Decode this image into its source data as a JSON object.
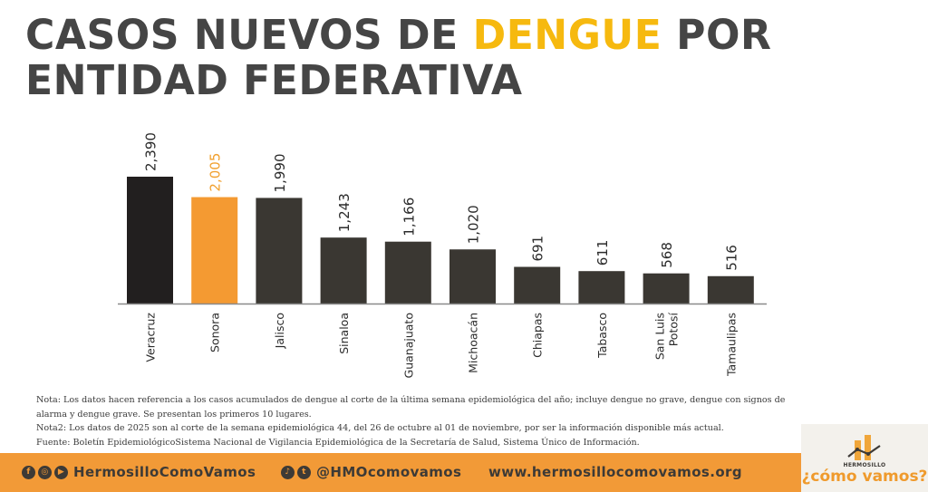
{
  "header": {
    "title_part1": "CASOS NUEVOS DE ",
    "title_highlight": "DENGUE",
    "title_part2": " POR",
    "title_line2": "ENTIDAD FEDERATIVA"
  },
  "colors": {
    "title_text": "#454545",
    "title_highlight": "#f6b90f",
    "bar_default": "#3a3732",
    "bar_first": "#221f1f",
    "bar_highlight": "#f49a32",
    "label_highlight": "#f1a02e",
    "axis": "#8a8a8a",
    "footer_bg": "#f29a37"
  },
  "chart_data": {
    "type": "bar",
    "title": "Casos nuevos de dengue por entidad federativa",
    "xlabel": "",
    "ylabel": "",
    "categories": [
      "Veracruz",
      "Sonora",
      "Jalisco",
      "Sinaloa",
      "Guanajuato",
      "Michoacán",
      "Chiapas",
      "Tabasco",
      "San Luis Potosí",
      "Tamaulipas"
    ],
    "category_lines": [
      [
        "Veracruz"
      ],
      [
        "Sonora"
      ],
      [
        "Jalisco"
      ],
      [
        "Sinaloa"
      ],
      [
        "Guanajuato"
      ],
      [
        "Michoacán"
      ],
      [
        "Chiapas"
      ],
      [
        "Tabasco"
      ],
      [
        "San Luis",
        "Potosí"
      ],
      [
        "Tamaulipas"
      ]
    ],
    "values": [
      2390,
      2005,
      1990,
      1243,
      1166,
      1020,
      691,
      611,
      568,
      516
    ],
    "value_labels": [
      "2,390",
      "2,005",
      "1,990",
      "1,243",
      "1,166",
      "1,020",
      "691",
      "611",
      "568",
      "516"
    ],
    "highlight_index": 1,
    "ylim": [
      0,
      2390
    ],
    "grid": false,
    "legend": "none"
  },
  "notes": {
    "nota1": "Nota: Los datos hacen referencia a los casos acumulados de dengue al corte de la última semana epidemiológica del año; incluye dengue no grave, dengue con signos de alarma y dengue grave. Se presentan los primeros 10 lugares.",
    "nota2": "Nota2: Los datos de 2025 son al corte de la semana epidemiológica 44, del 26 de octubre al 01 de noviembre, por ser la información disponible más actual.",
    "fuente": "Fuente: Boletín EpidemiológicoSistema Nacional de Vigilancia Epidemiológica de la Secretaría de Salud, Sistema Único de Información."
  },
  "footer": {
    "social_icons_1": [
      "facebook-icon",
      "instagram-icon",
      "youtube-icon"
    ],
    "handle_1": "HermosilloComoVamos",
    "social_icons_2": [
      "tiktok-icon",
      "twitter-icon"
    ],
    "handle_2": "@HMOcomovamos",
    "website": "www.hermosillocomovamos.org"
  },
  "logo": {
    "top_text": "HERMOSILLO",
    "main_text": "¿cómo vamos?"
  }
}
